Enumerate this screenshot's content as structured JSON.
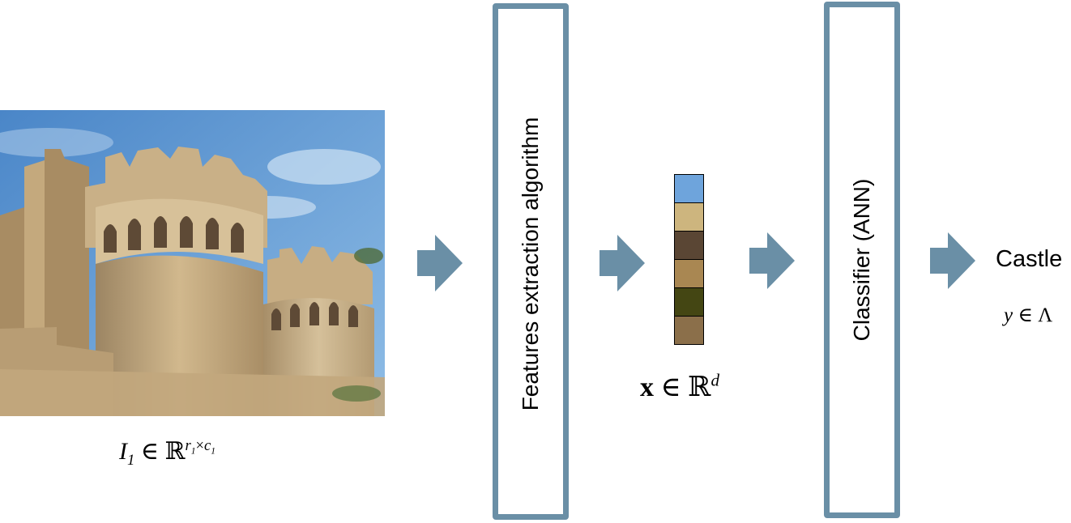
{
  "image": {
    "label_var": "I",
    "label_sub": "1",
    "label_in": "∈",
    "label_set": "ℝ",
    "label_exp_r": "r",
    "label_exp_r_sub": "1",
    "label_exp_times": "×",
    "label_exp_c": "c",
    "label_exp_c_sub": "1"
  },
  "feature_stage": {
    "label": "Features extraction algorithm"
  },
  "feature_vector": {
    "colors": [
      "#6ea4dc",
      "#cdb57e",
      "#5a4634",
      "#a98752",
      "#444613",
      "#8b6f4a"
    ],
    "label_var": "x",
    "label_in": "∈",
    "label_set": "ℝ",
    "label_exp": "d"
  },
  "classifier_stage": {
    "label": "Classifier (ANN)"
  },
  "output": {
    "label": "Castle",
    "math_var": "y",
    "math_in": "∈",
    "math_set": "Λ"
  },
  "colors": {
    "accent": "#6a8fa6"
  }
}
